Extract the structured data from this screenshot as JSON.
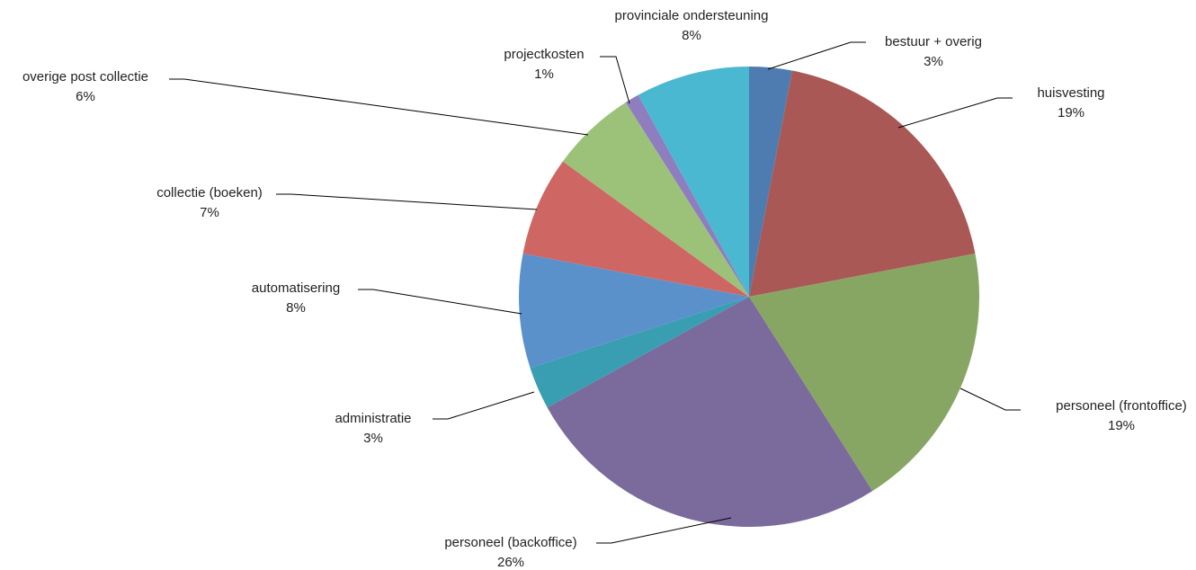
{
  "chart_data": {
    "type": "pie",
    "start_angle_deg": 0,
    "direction": "clockwise",
    "slices": [
      {
        "name": "bestuur + overig",
        "value": 3,
        "label": "3%",
        "color": "#4E7CB0"
      },
      {
        "name": "huisvesting",
        "value": 19,
        "label": "19%",
        "color": "#AA5855"
      },
      {
        "name": "personeel (frontoffice)",
        "value": 19,
        "label": "19%",
        "color": "#87A664"
      },
      {
        "name": "personeel (backoffice)",
        "value": 26,
        "label": "26%",
        "color": "#7B6A9C"
      },
      {
        "name": "administratie",
        "value": 3,
        "label": "3%",
        "color": "#3A9EB3"
      },
      {
        "name": "automatisering",
        "value": 8,
        "label": "8%",
        "color": "#5A91CB"
      },
      {
        "name": "collectie (boeken)",
        "value": 7,
        "label": "7%",
        "color": "#CE6764"
      },
      {
        "name": "overige post collectie",
        "value": 6,
        "label": "6%",
        "color": "#9CC27A"
      },
      {
        "name": "projectkosten",
        "value": 1,
        "label": "1%",
        "color": "#8E7DBF"
      },
      {
        "name": "provinciale ondersteuning",
        "value": 8,
        "label": "8%",
        "color": "#4BB8D1"
      }
    ]
  }
}
